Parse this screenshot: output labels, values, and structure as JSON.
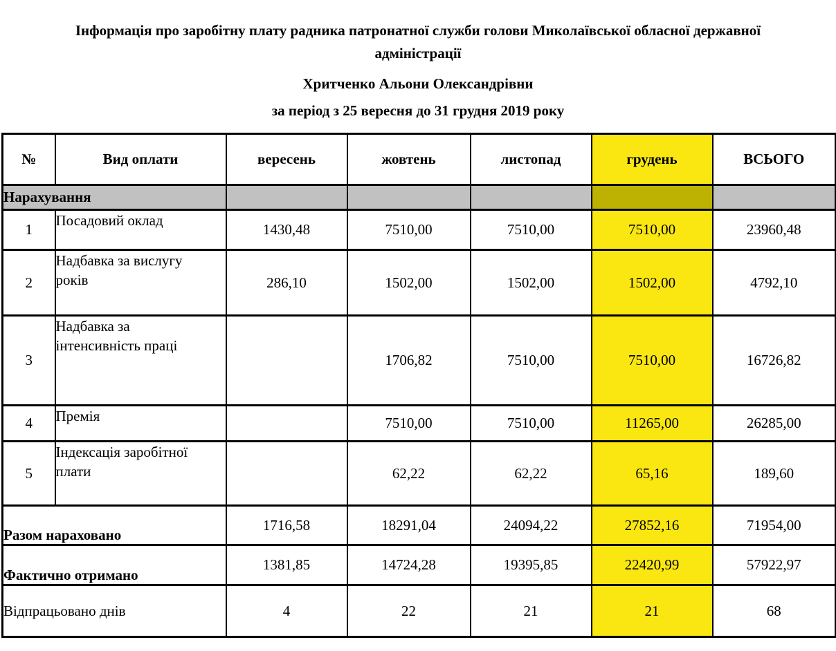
{
  "title": {
    "main": "Інформація про заробітну плату радника патронатної служби голови Миколаївської обласної державної\nадміністрації",
    "name": "Хритченко Альони Олександрівни",
    "period": "за період з 25 вересня до 31 грудня 2019 року"
  },
  "colors": {
    "highlight": "#FAE711",
    "highlight_dark": "#BDB102",
    "section_gray": "#C1C1C1"
  },
  "table": {
    "columns": [
      "№",
      "Вид оплати",
      "вересень",
      "жовтень",
      "листопад",
      "грудень",
      "ВСЬОГО"
    ],
    "section_header": "Нарахування",
    "rows": [
      {
        "num": "1",
        "label": "Посадовий оклад",
        "values": [
          "1430,48",
          "7510,00",
          "7510,00",
          "7510,00",
          "23960,48"
        ]
      },
      {
        "num": "2",
        "label": "Надбавка за вислугу\nроків",
        "values": [
          "286,10",
          "1502,00",
          "1502,00",
          "1502,00",
          "4792,10"
        ]
      },
      {
        "num": "3",
        "label": "Надбавка за\nінтенсивність праці",
        "values": [
          "",
          "1706,82",
          "7510,00",
          "7510,00",
          "16726,82"
        ]
      },
      {
        "num": "4",
        "label": "Премія",
        "values": [
          "",
          "7510,00",
          "7510,00",
          "11265,00",
          "26285,00"
        ]
      },
      {
        "num": "5",
        "label": "Індексація заробітної\nплати",
        "values": [
          "",
          "62,22",
          "62,22",
          "65,16",
          "189,60"
        ]
      }
    ],
    "summary_rows": [
      {
        "label": "Разом нараховано",
        "values": [
          "1716,58",
          "18291,04",
          "24094,22",
          "27852,16",
          "71954,00"
        ]
      },
      {
        "label": "Фактично отримано",
        "values": [
          "1381,85",
          "14724,28",
          "19395,85",
          "22420,99",
          "57922,97"
        ]
      },
      {
        "label": "Відпрацьовано днів",
        "values": [
          "4",
          "22",
          "21",
          "21",
          "68"
        ]
      }
    ]
  }
}
